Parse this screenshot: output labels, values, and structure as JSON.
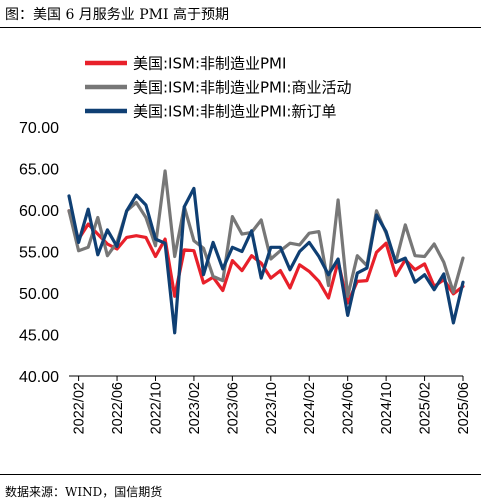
{
  "header": {
    "title": "图：美国 6 月服务业 PMI 高于预期"
  },
  "footer": {
    "source": "数据来源：WIND，国信期货"
  },
  "chart_data": {
    "type": "line",
    "title": "图：美国 6 月服务业 PMI 高于预期",
    "xlabel": "",
    "ylabel": "",
    "ylim": [
      40,
      70
    ],
    "yticks": [
      "40.00",
      "45.00",
      "50.00",
      "55.00",
      "60.00",
      "65.00",
      "70.00"
    ],
    "xticks": [
      "2022/02",
      "2022/06",
      "2022/10",
      "2023/02",
      "2023/06",
      "2023/10",
      "2024/02",
      "2024/06",
      "2024/10",
      "2025/02",
      "2025/06"
    ],
    "grid": false,
    "legend": "top-left",
    "x": [
      "2022/01",
      "2022/02",
      "2022/03",
      "2022/04",
      "2022/05",
      "2022/06",
      "2022/07",
      "2022/08",
      "2022/09",
      "2022/10",
      "2022/11",
      "2022/12",
      "2023/01",
      "2023/02",
      "2023/03",
      "2023/04",
      "2023/05",
      "2023/06",
      "2023/07",
      "2023/08",
      "2023/09",
      "2023/10",
      "2023/11",
      "2023/12",
      "2024/01",
      "2024/02",
      "2024/03",
      "2024/04",
      "2024/05",
      "2024/06",
      "2024/07",
      "2024/08",
      "2024/09",
      "2024/10",
      "2024/11",
      "2024/12",
      "2025/01",
      "2025/02",
      "2025/03",
      "2025/04",
      "2025/05",
      "2025/06"
    ],
    "series": [
      {
        "name": "美国:ISM:非制造业PMI",
        "color": "#e8202a",
        "values": [
          59.9,
          56.5,
          58.3,
          57.1,
          55.9,
          55.3,
          56.7,
          56.9,
          56.7,
          54.4,
          56.5,
          49.6,
          55.2,
          55.1,
          51.2,
          51.9,
          50.3,
          53.9,
          52.7,
          54.5,
          53.6,
          51.8,
          52.7,
          50.6,
          53.4,
          52.6,
          51.4,
          49.4,
          53.8,
          48.8,
          51.4,
          51.5,
          54.9,
          56.0,
          52.1,
          54.0,
          52.8,
          53.5,
          50.8,
          51.6,
          49.9,
          50.8
        ]
      },
      {
        "name": "美国:ISM:非制造业PMI:商业活动",
        "color": "#777777",
        "values": [
          59.9,
          55.1,
          55.5,
          59.1,
          54.5,
          56.1,
          59.9,
          60.9,
          59.1,
          55.7,
          64.7,
          54.4,
          60.4,
          56.3,
          55.4,
          52.0,
          51.5,
          59.2,
          57.1,
          57.3,
          58.8,
          54.1,
          55.1,
          56.0,
          55.8,
          57.2,
          57.4,
          50.9,
          61.2,
          49.6,
          54.5,
          53.3,
          59.9,
          57.2,
          53.7,
          58.2,
          54.5,
          54.4,
          55.9,
          53.7,
          50.1,
          54.2
        ]
      },
      {
        "name": "美国:ISM:非制造业PMI:新订单",
        "color": "#0f3f73",
        "values": [
          61.7,
          56.1,
          60.1,
          54.6,
          57.6,
          55.6,
          59.9,
          61.8,
          60.6,
          56.5,
          56.0,
          45.2,
          60.4,
          62.6,
          52.2,
          56.1,
          52.9,
          55.5,
          55.0,
          57.5,
          51.8,
          55.5,
          55.5,
          52.8,
          55.0,
          56.1,
          54.4,
          52.2,
          54.1,
          47.3,
          52.4,
          53.0,
          59.4,
          57.4,
          53.7,
          54.2,
          51.3,
          52.2,
          50.4,
          52.3,
          46.4,
          51.3
        ]
      }
    ]
  }
}
